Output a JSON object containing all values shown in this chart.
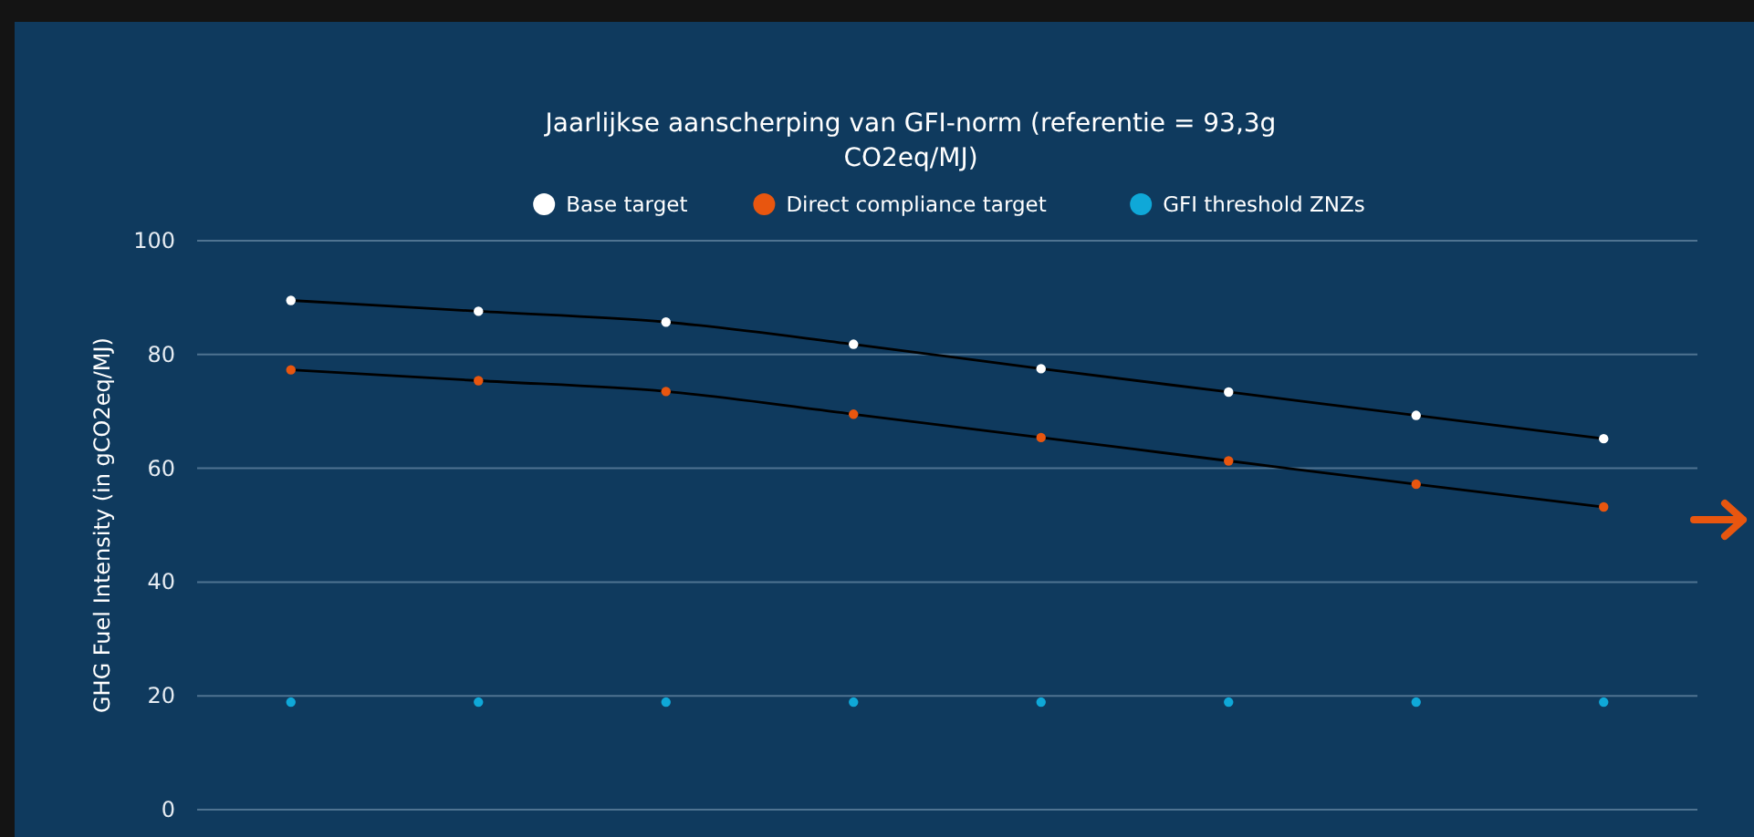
{
  "chart_data": {
    "type": "line",
    "title": "Jaarlijkse aanscherping van GFI-norm (referentie = 93,3g CO2eq/MJ)",
    "ylabel": "GHG Fuel Intensity (in gCO2eq/MJ)",
    "categories": [
      null,
      null,
      null,
      null,
      null,
      null,
      null,
      null
    ],
    "series": [
      {
        "name": "Base target",
        "color": "#ffffff",
        "values": [
          89.5,
          87.6,
          85.7,
          81.8,
          77.5,
          73.4,
          69.3,
          65.2
        ]
      },
      {
        "name": "Direct compliance target",
        "color": "#e8560f",
        "values": [
          77.3,
          75.4,
          73.5,
          69.5,
          65.4,
          61.3,
          57.2,
          53.2
        ]
      },
      {
        "name": "GFI threshold ZNZs",
        "type": "scatter",
        "color": "#0fa8d8",
        "values": [
          18.9,
          18.9,
          18.9,
          18.9,
          18.9,
          18.9,
          18.9,
          18.9
        ]
      }
    ],
    "ylim": [
      0,
      100
    ],
    "yticks": [
      0,
      20,
      40,
      60,
      80,
      100
    ],
    "grid": "y",
    "legend": "top",
    "tick_labels": "y",
    "marker": "circle",
    "line_style": "solid"
  }
}
